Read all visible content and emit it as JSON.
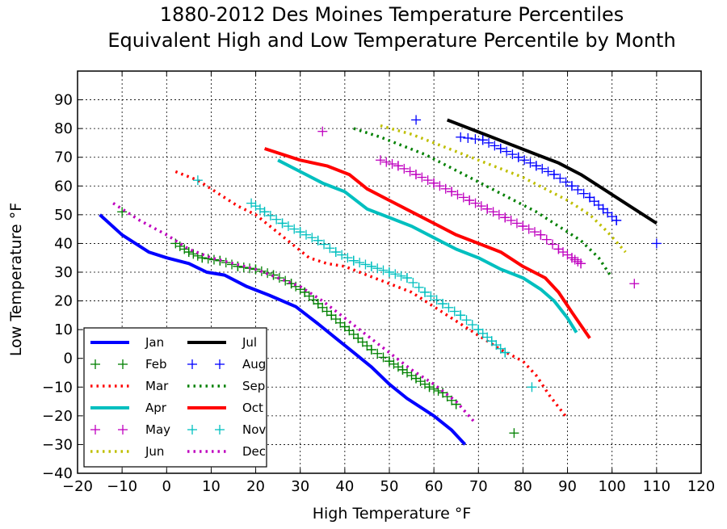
{
  "chart_data": {
    "type": "line",
    "title": "1880-2012 Des Moines Temperature Percentiles",
    "subtitle": "Equivalent High and Low Temperature Percentile by Month",
    "xlabel": "High Temperature °F",
    "ylabel": "Low Temperature °F",
    "xlim": [
      -20,
      120
    ],
    "ylim": [
      -40,
      100
    ],
    "xticks": [
      -20,
      -10,
      0,
      10,
      20,
      30,
      40,
      50,
      60,
      70,
      80,
      90,
      100,
      110,
      120
    ],
    "yticks": [
      -40,
      -30,
      -20,
      -10,
      0,
      10,
      20,
      30,
      40,
      50,
      60,
      70,
      80,
      90
    ],
    "grid": true,
    "legend_position": "bottom-left",
    "series": [
      {
        "name": "Jan",
        "color": "#0000ff",
        "style": "solid",
        "points": [
          [
            -15,
            50
          ],
          [
            -10,
            43
          ],
          [
            -4,
            37
          ],
          [
            0,
            35
          ],
          [
            5,
            33
          ],
          [
            9,
            30
          ],
          [
            13,
            29
          ],
          [
            18,
            25
          ],
          [
            23,
            22
          ],
          [
            29,
            18
          ],
          [
            34,
            12
          ],
          [
            38,
            7
          ],
          [
            42,
            2
          ],
          [
            46,
            -3
          ],
          [
            50,
            -9
          ],
          [
            54,
            -14
          ],
          [
            60,
            -20
          ],
          [
            64,
            -25
          ],
          [
            67,
            -30
          ]
        ]
      },
      {
        "name": "Feb",
        "color": "#008000",
        "style": "plus",
        "points": [
          [
            -10,
            51
          ],
          [
            2,
            40
          ],
          [
            5,
            37
          ],
          [
            8,
            35
          ],
          [
            12,
            34
          ],
          [
            16,
            32
          ],
          [
            20,
            31
          ],
          [
            24,
            29
          ],
          [
            28,
            26
          ],
          [
            31,
            23
          ],
          [
            34,
            19
          ],
          [
            37,
            15
          ],
          [
            40,
            11
          ],
          [
            43,
            7
          ],
          [
            46,
            3
          ],
          [
            50,
            -1
          ],
          [
            53,
            -4
          ],
          [
            56,
            -7
          ],
          [
            59,
            -10
          ],
          [
            62,
            -12
          ],
          [
            65,
            -16
          ],
          [
            78,
            -26
          ]
        ]
      },
      {
        "name": "Mar",
        "color": "#ff0000",
        "style": "dotted",
        "points": [
          [
            2,
            65
          ],
          [
            7,
            62
          ],
          [
            12,
            57
          ],
          [
            16,
            53
          ],
          [
            20,
            50
          ],
          [
            24,
            45
          ],
          [
            28,
            40
          ],
          [
            32,
            35
          ],
          [
            36,
            33
          ],
          [
            40,
            32
          ],
          [
            45,
            29
          ],
          [
            50,
            26
          ],
          [
            55,
            23
          ],
          [
            60,
            18
          ],
          [
            65,
            13
          ],
          [
            70,
            8
          ],
          [
            75,
            3
          ],
          [
            80,
            -1
          ],
          [
            83,
            -6
          ],
          [
            86,
            -13
          ],
          [
            90,
            -21
          ]
        ]
      },
      {
        "name": "Apr",
        "color": "#00bfbf",
        "style": "solid",
        "points": [
          [
            25,
            69
          ],
          [
            30,
            65
          ],
          [
            35,
            61
          ],
          [
            40,
            58
          ],
          [
            45,
            52
          ],
          [
            50,
            49
          ],
          [
            55,
            46
          ],
          [
            60,
            42
          ],
          [
            65,
            38
          ],
          [
            70,
            35
          ],
          [
            75,
            31
          ],
          [
            80,
            28
          ],
          [
            84,
            24
          ],
          [
            87,
            20
          ],
          [
            90,
            14
          ],
          [
            92,
            9
          ]
        ]
      },
      {
        "name": "May",
        "color": "#bf00bf",
        "style": "plus",
        "points": [
          [
            35,
            79
          ],
          [
            48,
            69
          ],
          [
            52,
            67
          ],
          [
            56,
            64
          ],
          [
            60,
            61
          ],
          [
            64,
            58
          ],
          [
            68,
            55
          ],
          [
            72,
            52
          ],
          [
            76,
            49
          ],
          [
            80,
            46
          ],
          [
            84,
            43
          ],
          [
            88,
            38
          ],
          [
            91,
            35
          ],
          [
            93,
            33
          ],
          [
            105,
            26
          ]
        ]
      },
      {
        "name": "Jun",
        "color": "#bfbf00",
        "style": "dotted",
        "points": [
          [
            48,
            81
          ],
          [
            55,
            78
          ],
          [
            60,
            75
          ],
          [
            65,
            72
          ],
          [
            70,
            69
          ],
          [
            75,
            66
          ],
          [
            80,
            63
          ],
          [
            85,
            59
          ],
          [
            90,
            55
          ],
          [
            95,
            50
          ],
          [
            99,
            44
          ],
          [
            103,
            37
          ]
        ]
      },
      {
        "name": "Jul",
        "color": "#000000",
        "style": "solid",
        "points": [
          [
            63,
            83
          ],
          [
            68,
            80
          ],
          [
            73,
            77
          ],
          [
            78,
            74
          ],
          [
            83,
            71
          ],
          [
            88,
            68
          ],
          [
            93,
            64
          ],
          [
            98,
            59
          ],
          [
            102,
            55
          ],
          [
            106,
            51
          ],
          [
            110,
            47
          ]
        ]
      },
      {
        "name": "Aug",
        "color": "#0000ff",
        "style": "plus",
        "points": [
          [
            56,
            83
          ],
          [
            66,
            77
          ],
          [
            71,
            76
          ],
          [
            75,
            73
          ],
          [
            79,
            70
          ],
          [
            83,
            67
          ],
          [
            87,
            64
          ],
          [
            91,
            60
          ],
          [
            95,
            56
          ],
          [
            98,
            52
          ],
          [
            101,
            48
          ],
          [
            110,
            40
          ]
        ]
      },
      {
        "name": "Sep",
        "color": "#008000",
        "style": "dotted",
        "points": [
          [
            42,
            80
          ],
          [
            48,
            77
          ],
          [
            53,
            74
          ],
          [
            58,
            71
          ],
          [
            63,
            67
          ],
          [
            68,
            63
          ],
          [
            73,
            59
          ],
          [
            78,
            55
          ],
          [
            83,
            51
          ],
          [
            88,
            46
          ],
          [
            93,
            41
          ],
          [
            97,
            35
          ],
          [
            100,
            28
          ]
        ]
      },
      {
        "name": "Oct",
        "color": "#ff0000",
        "style": "solid",
        "points": [
          [
            22,
            73
          ],
          [
            30,
            69
          ],
          [
            36,
            67
          ],
          [
            41,
            64
          ],
          [
            45,
            59
          ],
          [
            50,
            55
          ],
          [
            55,
            51
          ],
          [
            60,
            47
          ],
          [
            65,
            43
          ],
          [
            70,
            40
          ],
          [
            75,
            37
          ],
          [
            80,
            32
          ],
          [
            85,
            28
          ],
          [
            88,
            23
          ],
          [
            91,
            16
          ],
          [
            95,
            7
          ]
        ]
      },
      {
        "name": "Nov",
        "color": "#00bfbf",
        "style": "plus",
        "points": [
          [
            7,
            62
          ],
          [
            19,
            54
          ],
          [
            22,
            51
          ],
          [
            26,
            47
          ],
          [
            30,
            44
          ],
          [
            34,
            41
          ],
          [
            38,
            37
          ],
          [
            42,
            34
          ],
          [
            46,
            32
          ],
          [
            50,
            30
          ],
          [
            54,
            28
          ],
          [
            58,
            23
          ],
          [
            62,
            19
          ],
          [
            66,
            15
          ],
          [
            70,
            10
          ],
          [
            73,
            6
          ],
          [
            76,
            2
          ],
          [
            82,
            -10
          ]
        ]
      },
      {
        "name": "Dec",
        "color": "#bf00bf",
        "style": "dotted",
        "points": [
          [
            -12,
            54
          ],
          [
            -6,
            48
          ],
          [
            0,
            43
          ],
          [
            5,
            38
          ],
          [
            10,
            35
          ],
          [
            15,
            33
          ],
          [
            20,
            31
          ],
          [
            25,
            28
          ],
          [
            30,
            25
          ],
          [
            35,
            20
          ],
          [
            40,
            14
          ],
          [
            45,
            8
          ],
          [
            50,
            2
          ],
          [
            55,
            -4
          ],
          [
            60,
            -9
          ],
          [
            65,
            -15
          ],
          [
            69,
            -22
          ]
        ]
      }
    ]
  }
}
